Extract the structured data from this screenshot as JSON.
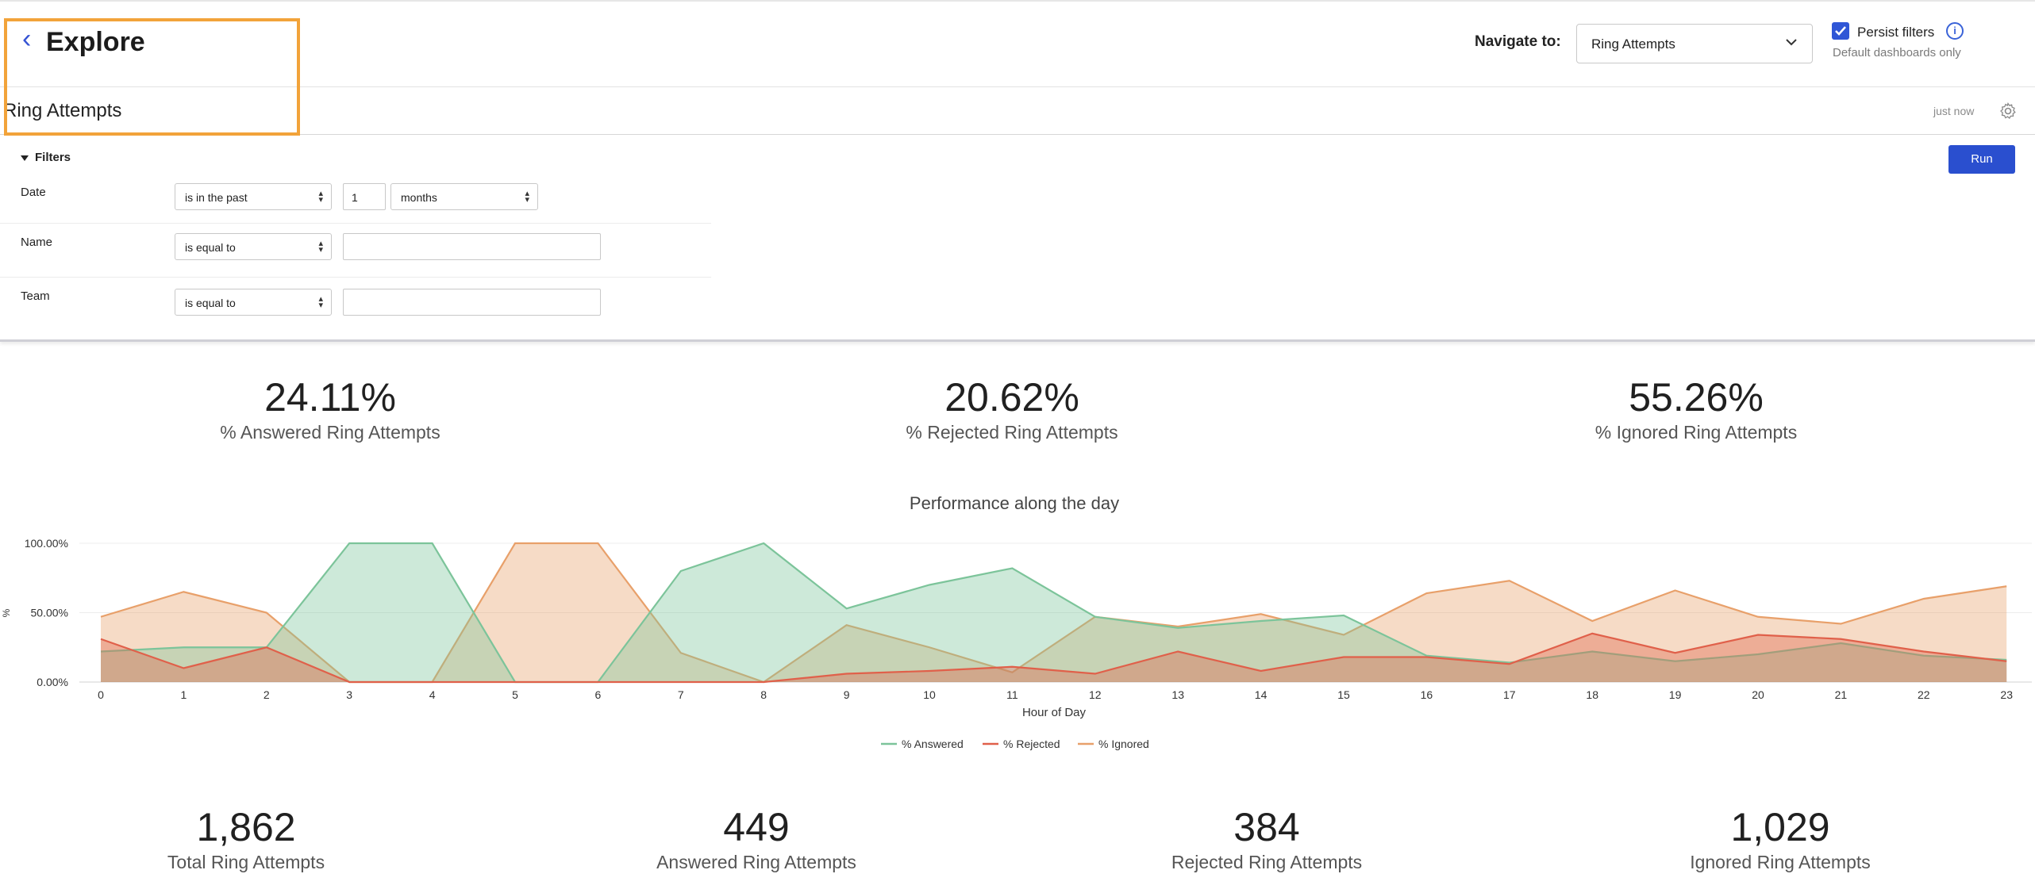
{
  "header": {
    "back_glyph": "‹",
    "title": "Explore",
    "navigate_label": "Navigate to:",
    "navigate_value": "Ring Attempts",
    "persist_label": "Persist filters",
    "persist_sub": "Default dashboards only",
    "persist_checked": true
  },
  "page": {
    "title": "Ring Attempts",
    "updated": "just now"
  },
  "filters": {
    "heading": "Filters",
    "run_label": "Run",
    "rows": [
      {
        "label": "Date",
        "operator": "is in the past",
        "amount": "1",
        "unit": "months"
      },
      {
        "label": "Name",
        "operator": "is equal to",
        "value": ""
      },
      {
        "label": "Team",
        "operator": "is equal to",
        "value": ""
      }
    ]
  },
  "kpis_top": [
    {
      "value": "24.11%",
      "label": "% Answered Ring Attempts"
    },
    {
      "value": "20.62%",
      "label": "% Rejected Ring Attempts"
    },
    {
      "value": "55.26%",
      "label": "% Ignored Ring Attempts"
    }
  ],
  "kpis_bottom": [
    {
      "value": "1,862",
      "label": "Total Ring Attempts"
    },
    {
      "value": "449",
      "label": "Answered Ring Attempts"
    },
    {
      "value": "384",
      "label": "Rejected Ring Attempts"
    },
    {
      "value": "1,029",
      "label": "Ignored Ring Attempts"
    }
  ],
  "chart_data": {
    "type": "area",
    "title": "Performance along the day",
    "xlabel": "Hour of Day",
    "ylabel": "%",
    "x": [
      0,
      1,
      2,
      3,
      4,
      5,
      6,
      7,
      8,
      9,
      10,
      11,
      12,
      13,
      14,
      15,
      16,
      17,
      18,
      19,
      20,
      21,
      22,
      23
    ],
    "ylim": [
      0,
      100
    ],
    "yticks": [
      "0.00%",
      "50.00%",
      "100.00%"
    ],
    "legend_position": "bottom",
    "series": [
      {
        "name": "% Ignored",
        "color": "#e8a06a",
        "values": [
          47,
          65,
          50,
          0,
          0,
          100,
          100,
          21,
          0,
          41,
          25,
          7,
          47,
          40,
          49,
          34,
          64,
          73,
          44,
          66,
          47,
          42,
          60,
          69
        ]
      },
      {
        "name": "% Answered",
        "color": "#7cc49a",
        "values": [
          22,
          25,
          25,
          100,
          100,
          0,
          0,
          80,
          100,
          53,
          70,
          82,
          47,
          39,
          44,
          48,
          19,
          14,
          22,
          15,
          20,
          28,
          19,
          16
        ]
      },
      {
        "name": "% Rejected",
        "color": "#e0604a",
        "values": [
          31,
          10,
          25,
          0,
          0,
          0,
          0,
          0,
          0,
          6,
          8,
          11,
          6,
          22,
          8,
          18,
          18,
          13,
          35,
          21,
          34,
          31,
          22,
          15
        ]
      }
    ]
  }
}
